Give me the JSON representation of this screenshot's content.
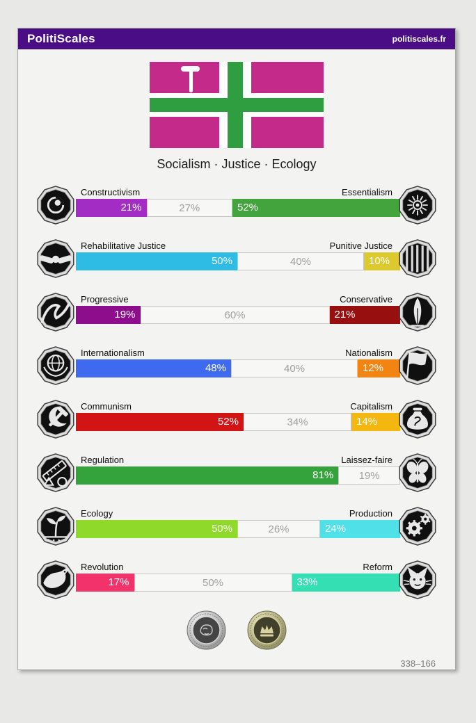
{
  "header": {
    "title": "PolitiScales",
    "site_link": "politiscales.fr",
    "background": "#4a0d85"
  },
  "flag": {
    "motto": "Socialism · Justice · Ecology",
    "field_color": "#c42a8a",
    "cross_color": "#2f9e41",
    "border_color": "#ffffff",
    "emblem": "hammer"
  },
  "axes": [
    {
      "id": "constructivism-essentialism",
      "left": {
        "label": "Constructivism",
        "icon": "eye-swirl",
        "color": "#a32cc4"
      },
      "right": {
        "label": "Essentialism",
        "icon": "flower-burst",
        "color": "#43a33c"
      },
      "segments": [
        {
          "kind": "left",
          "pct": 21,
          "text": "21%"
        },
        {
          "kind": "neutral",
          "pct": 27,
          "text": "27%"
        },
        {
          "kind": "right",
          "pct": 52,
          "text": "52%"
        }
      ]
    },
    {
      "id": "rehabilitative-punitive-justice",
      "left": {
        "label": "Rehabilitative Justice",
        "icon": "handshake",
        "color": "#2fbce4"
      },
      "right": {
        "label": "Punitive Justice",
        "icon": "prison-bars",
        "color": "#ddc92e"
      },
      "segments": [
        {
          "kind": "left",
          "pct": 50,
          "text": "50%"
        },
        {
          "kind": "neutral",
          "pct": 40,
          "text": "40%"
        },
        {
          "kind": "right",
          "pct": 10,
          "text": "10%"
        }
      ]
    },
    {
      "id": "progressive-conservative",
      "left": {
        "label": "Progressive",
        "icon": "wave",
        "color": "#8d0d8d"
      },
      "right": {
        "label": "Conservative",
        "icon": "quill",
        "color": "#970f0f"
      },
      "segments": [
        {
          "kind": "left",
          "pct": 19,
          "text": "19%"
        },
        {
          "kind": "neutral",
          "pct": 60,
          "text": "60%"
        },
        {
          "kind": "right",
          "pct": 21,
          "text": "21%"
        }
      ]
    },
    {
      "id": "internationalism-nationalism",
      "left": {
        "label": "Internationalism",
        "icon": "globe-laurel",
        "color": "#3e6af0"
      },
      "right": {
        "label": "Nationalism",
        "icon": "waving-flag",
        "color": "#f28411"
      },
      "segments": [
        {
          "kind": "left",
          "pct": 48,
          "text": "48%"
        },
        {
          "kind": "neutral",
          "pct": 40,
          "text": "40%"
        },
        {
          "kind": "right",
          "pct": 12,
          "text": "12%"
        }
      ]
    },
    {
      "id": "communism-capitalism",
      "left": {
        "label": "Communism",
        "icon": "hammer-sickle",
        "color": "#d31414"
      },
      "right": {
        "label": "Capitalism",
        "icon": "money-bag",
        "color": "#f3b70f"
      },
      "segments": [
        {
          "kind": "left",
          "pct": 52,
          "text": "52%"
        },
        {
          "kind": "neutral",
          "pct": 34,
          "text": "34%"
        },
        {
          "kind": "right",
          "pct": 14,
          "text": "14%"
        }
      ]
    },
    {
      "id": "regulation-laissezfaire",
      "left": {
        "label": "Regulation",
        "icon": "ruler-shapes",
        "color": "#35a33c"
      },
      "right": {
        "label": "Laissez-faire",
        "icon": "butterflies",
        "color": ""
      },
      "segments": [
        {
          "kind": "left",
          "pct": 81,
          "text": "81%"
        },
        {
          "kind": "neutral",
          "pct": 19,
          "text": "19%"
        }
      ]
    },
    {
      "id": "ecology-production",
      "left": {
        "label": "Ecology",
        "icon": "sprout-field",
        "color": "#8fd92b"
      },
      "right": {
        "label": "Production",
        "icon": "gears",
        "color": "#4fe0e8"
      },
      "segments": [
        {
          "kind": "left",
          "pct": 50,
          "text": "50%"
        },
        {
          "kind": "neutral",
          "pct": 26,
          "text": "26%"
        },
        {
          "kind": "right",
          "pct": 24,
          "text": "24%"
        }
      ]
    },
    {
      "id": "revolution-reform",
      "left": {
        "label": "Revolution",
        "icon": "raven",
        "color": "#f1326b"
      },
      "right": {
        "label": "Reform",
        "icon": "cat",
        "color": "#35dfb4"
      },
      "segments": [
        {
          "kind": "left",
          "pct": 17,
          "text": "17%"
        },
        {
          "kind": "neutral",
          "pct": 50,
          "text": "50%"
        },
        {
          "kind": "right",
          "pct": 33,
          "text": "33%"
        }
      ]
    }
  ],
  "badges": [
    {
      "id": "silver-coin",
      "icon": "brain-coin"
    },
    {
      "id": "olive-coin",
      "icon": "crown-coin"
    }
  ],
  "footer": {
    "code": "338–166"
  }
}
